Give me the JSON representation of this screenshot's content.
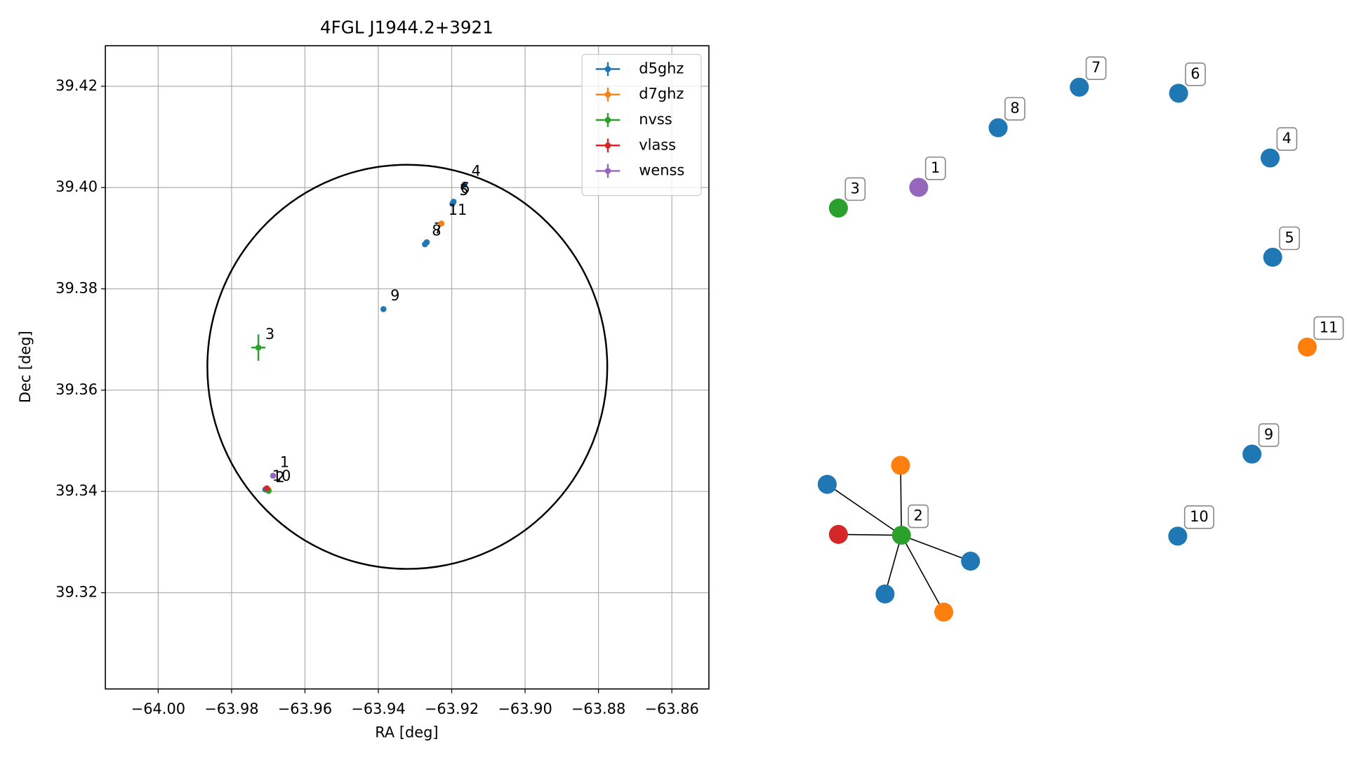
{
  "chart_data": [
    {
      "type": "scatter",
      "title": "4FGL J1944.2+3921",
      "xlabel": "RA [deg]",
      "ylabel": "Dec [deg]",
      "xlim": [
        -64.0144,
        -63.8499
      ],
      "ylim": [
        39.301,
        39.428
      ],
      "xticks": [
        {
          "value": -64.0,
          "label": "−64.00"
        },
        {
          "value": -63.98,
          "label": "−63.98"
        },
        {
          "value": -63.96,
          "label": "−63.96"
        },
        {
          "value": -63.94,
          "label": "−63.94"
        },
        {
          "value": -63.92,
          "label": "−63.92"
        },
        {
          "value": -63.9,
          "label": "−63.90"
        },
        {
          "value": -63.88,
          "label": "−63.88"
        },
        {
          "value": -63.86,
          "label": "−63.86"
        }
      ],
      "yticks": [
        39.32,
        39.34,
        39.36,
        39.38,
        {
          "value": 39.4,
          "label": "39.40"
        },
        39.42
      ],
      "grid": true,
      "legend": "upper right",
      "ellipse": {
        "center": [
          -63.9321,
          39.3646
        ],
        "radii": [
          0.0545,
          0.0399
        ]
      },
      "series": [
        {
          "name": "d5ghz",
          "color": "#1f77b4",
          "x": [
            -63.9165,
            -63.9198,
            -63.9195,
            -63.9268,
            -63.9273,
            -63.9386,
            -63.9708
          ],
          "values": [
            39.4006,
            39.3968,
            39.3972,
            39.3892,
            39.3888,
            39.376,
            39.3404
          ],
          "xerr": [
            0.0003,
            0.0003,
            0.0003,
            0.0003,
            0.0003,
            0.0003,
            0.0003
          ],
          "yerr": [
            0.0003,
            0.0003,
            0.0003,
            0.0003,
            0.0003,
            0.0003,
            0.0003
          ],
          "labels": [
            "4",
            "5",
            "6",
            "7",
            "8",
            "9",
            "10"
          ]
        },
        {
          "name": "d7ghz",
          "color": "#ff7f0e",
          "x": [
            -63.9228,
            -63.9699
          ],
          "values": [
            39.3929,
            39.3403
          ],
          "xerr": [
            0.0003,
            0.0003
          ],
          "yerr": [
            0.0003,
            0.0003
          ],
          "labels": [
            "11",
            null
          ]
        },
        {
          "name": "nvss",
          "color": "#2ca02c",
          "x": [
            -63.9727,
            -63.9699
          ],
          "values": [
            39.3684,
            39.3401
          ],
          "xerr": [
            0.0019,
            0.0003
          ],
          "yerr": [
            0.0026,
            0.0003
          ],
          "labels": [
            "3",
            "2"
          ]
        },
        {
          "name": "vlass",
          "color": "#d62728",
          "x": [
            -63.9704
          ],
          "values": [
            39.3406
          ],
          "xerr": [
            0.0003
          ],
          "yerr": [
            0.0003
          ],
          "labels": [
            null
          ]
        },
        {
          "name": "wenss",
          "color": "#9467bd",
          "x": [
            -63.9687
          ],
          "values": [
            39.3431
          ],
          "xerr": [
            0.0003
          ],
          "yerr": [
            0.0003
          ],
          "labels": [
            "1"
          ]
        }
      ]
    },
    {
      "type": "network",
      "nodes": [
        {
          "label": "1",
          "color": "#9467bd"
        },
        {
          "label": "2",
          "color": "#2ca02c"
        },
        {
          "label": "3",
          "color": "#2ca02c"
        },
        {
          "label": "4",
          "color": "#1f77b4"
        },
        {
          "label": "5",
          "color": "#1f77b4"
        },
        {
          "label": "6",
          "color": "#1f77b4"
        },
        {
          "label": "7",
          "color": "#1f77b4"
        },
        {
          "label": "8",
          "color": "#1f77b4"
        },
        {
          "label": "9",
          "color": "#1f77b4"
        },
        {
          "label": "10",
          "color": "#1f77b4"
        },
        {
          "label": "11",
          "color": "#ff7f0e"
        },
        {
          "label": null,
          "color": "#ff7f0e"
        },
        {
          "label": null,
          "color": "#1f77b4"
        },
        {
          "label": null,
          "color": "#d62728"
        },
        {
          "label": null,
          "color": "#1f77b4"
        },
        {
          "label": null,
          "color": "#1f77b4"
        },
        {
          "label": null,
          "color": "#ff7f0e"
        }
      ],
      "edges": [
        [
          1,
          11
        ],
        [
          1,
          12
        ],
        [
          1,
          13
        ],
        [
          1,
          14
        ],
        [
          1,
          15
        ],
        [
          1,
          16
        ]
      ]
    }
  ]
}
